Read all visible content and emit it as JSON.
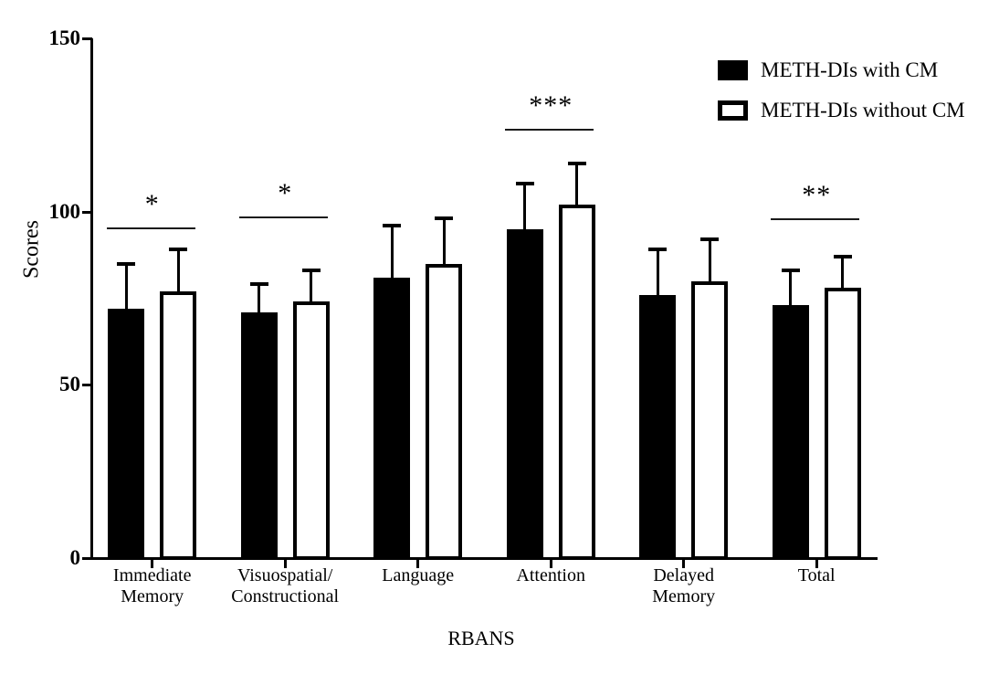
{
  "page": {
    "background": "#ffffff",
    "ink_color": "#000000"
  },
  "chart_data": {
    "type": "bar",
    "title": "",
    "xlabel": "RBANS",
    "ylabel": "Scores",
    "ylim": [
      0,
      150
    ],
    "yticks": [
      0,
      50,
      100,
      150
    ],
    "grid": false,
    "legend_position": "top-right",
    "categories": [
      [
        "Immediate",
        "Memory"
      ],
      [
        "Visuospatial/",
        "Constructional"
      ],
      [
        "Language"
      ],
      [
        "Attention"
      ],
      [
        "Delayed",
        "Memory"
      ],
      [
        "Total"
      ]
    ],
    "series": [
      {
        "name": "METH-DIs with CM",
        "style": "filled-black",
        "fill": "#000000",
        "values": [
          72,
          71,
          81,
          95,
          76,
          73
        ],
        "upper_errors": [
          13,
          8,
          15,
          13,
          13,
          10
        ]
      },
      {
        "name": "METH-DIs without CM",
        "style": "white-outlined",
        "fill": "#ffffff",
        "values": [
          77,
          74,
          85,
          102,
          80,
          78
        ],
        "upper_errors": [
          12,
          9,
          13,
          12,
          12,
          9
        ]
      }
    ],
    "significance": [
      {
        "category_index": 0,
        "marker": "*",
        "line_score": 95.5
      },
      {
        "category_index": 1,
        "marker": "*",
        "line_score": 98.5
      },
      {
        "category_index": 3,
        "marker": "***",
        "line_score": 124
      },
      {
        "category_index": 5,
        "marker": "**",
        "line_score": 98
      }
    ]
  }
}
